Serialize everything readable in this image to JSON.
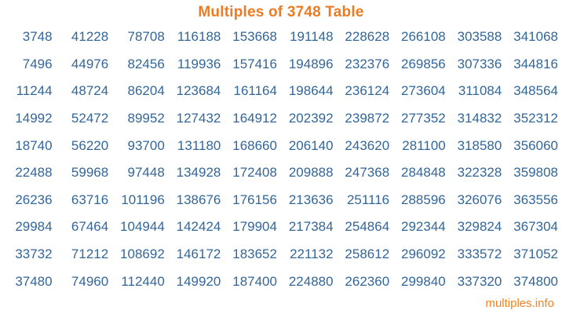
{
  "page": {
    "title": "Multiples of 3748 Table",
    "footer_link": "multiples.info"
  },
  "colors": {
    "title_orange": "#ED7B22",
    "number_blue": "#336699",
    "footer_orange": "#F5821F",
    "background": "#FFFFFF"
  },
  "chart_data": {
    "type": "table",
    "title": "Multiples of 3748 Table",
    "base_number": 3748,
    "layout_hint": "10 columns x 10 rows; columns list multiples 1-10, 11-20, ..., 91-100 top to bottom",
    "rows": [
      [
        "3748",
        "41228",
        "78708",
        "116188",
        "153668",
        "191148",
        "228628",
        "266108",
        "303588",
        "341068"
      ],
      [
        "7496",
        "44976",
        "82456",
        "119936",
        "157416",
        "194896",
        "232376",
        "269856",
        "307336",
        "344816"
      ],
      [
        "11244",
        "48724",
        "86204",
        "123684",
        "161164",
        "198644",
        "236124",
        "273604",
        "311084",
        "348564"
      ],
      [
        "14992",
        "52472",
        "89952",
        "127432",
        "164912",
        "202392",
        "239872",
        "277352",
        "314832",
        "352312"
      ],
      [
        "18740",
        "56220",
        "93700",
        "131180",
        "168660",
        "206140",
        "243620",
        "281100",
        "318580",
        "356060"
      ],
      [
        "22488",
        "59968",
        "97448",
        "134928",
        "172408",
        "209888",
        "247368",
        "284848",
        "322328",
        "359808"
      ],
      [
        "26236",
        "63716",
        "101196",
        "138676",
        "176156",
        "213636",
        "251116",
        "288596",
        "326076",
        "363556"
      ],
      [
        "29984",
        "67464",
        "104944",
        "142424",
        "179904",
        "217384",
        "254864",
        "292344",
        "329824",
        "367304"
      ],
      [
        "33732",
        "71212",
        "108692",
        "146172",
        "183652",
        "221132",
        "258612",
        "296092",
        "333572",
        "371052"
      ],
      [
        "37480",
        "74960",
        "112440",
        "149920",
        "187400",
        "224880",
        "262360",
        "299840",
        "337320",
        "374800"
      ]
    ]
  }
}
